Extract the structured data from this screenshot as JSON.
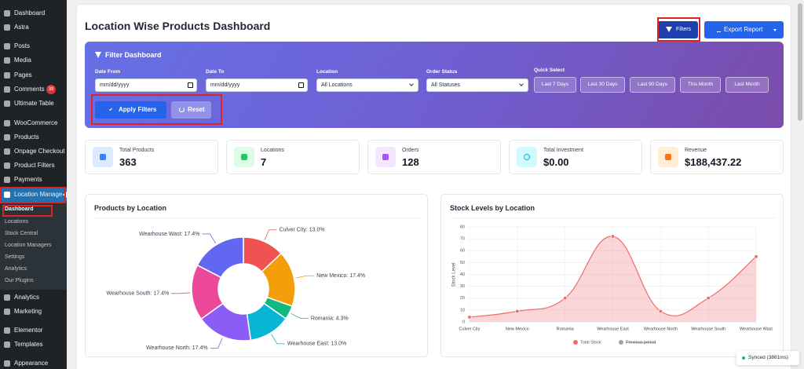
{
  "sidebar": {
    "items": [
      "Dashboard",
      "Astra",
      "Posts",
      "Media",
      "Pages",
      "Comments",
      "Ultimate Table",
      "WooCommerce",
      "Products",
      "Onpage Checkout",
      "Product Filters",
      "Payments",
      "Location Manage"
    ],
    "comments_badge": 39,
    "submenu": [
      "Dashboard",
      "Locations",
      "Stock Central",
      "Location Managers",
      "Settings",
      "Analytics",
      "Our Plugins"
    ],
    "items_after": [
      "Analytics",
      "Marketing",
      "Elementor",
      "Templates",
      "Appearance"
    ]
  },
  "header": {
    "title": "Location Wise Products Dashboard",
    "filters_button": "Filters",
    "export_button": "Export Report"
  },
  "filter": {
    "title": "Filter Dashboard",
    "fields": [
      {
        "label": "Date From",
        "value": "mm/dd/yyyy"
      },
      {
        "label": "Date To",
        "value": "mm/dd/yyyy"
      },
      {
        "label": "Location",
        "value": "All Locations"
      },
      {
        "label": "Order Status",
        "value": "All Statuses"
      }
    ],
    "quick_select": {
      "label": "Quick Select",
      "options": [
        "Last 7 Days",
        "Last 30 Days",
        "Last 90 Days",
        "This Month",
        "Last Month"
      ]
    },
    "apply": "Apply Filters",
    "reset": "Reset"
  },
  "stats": [
    {
      "label": "Total Products",
      "value": "363"
    },
    {
      "label": "Locations",
      "value": "7"
    },
    {
      "label": "Orders",
      "value": "128"
    },
    {
      "label": "Total Investment",
      "value": "$0.00"
    },
    {
      "label": "Revenue",
      "value": "$188,437.22"
    }
  ],
  "chart_data": [
    {
      "type": "pie",
      "title": "Products by Location",
      "donut": true,
      "values": [
        13.0,
        17.4,
        4.3,
        13.0,
        17.4,
        17.4,
        17.4
      ],
      "value_labels": [
        "Culver City: 13.0%",
        "New Mexico: 17.4%",
        "Romania: 4.3%",
        "Wearhouse East: 13.0%",
        "Wearhouse North: 17.4%",
        "Wearhouse South: 17.4%",
        "Wearhouse Wast: 17.4%"
      ],
      "colors": [
        "#f05252",
        "#f59e0b",
        "#10b981",
        "#06b6d4",
        "#8b5cf6",
        "#ec4899",
        "#6366f1"
      ]
    },
    {
      "type": "line",
      "title": "Stock Levels by Location",
      "y_label": "Stock Level",
      "categories": [
        "Culver City",
        "New Mexico",
        "Romania",
        "Wearhouse East",
        "Wearhouse North",
        "Wearhouse South",
        "Wearhouse Wast"
      ],
      "ylim": [
        0,
        80
      ],
      "yticks": [
        0,
        10,
        20,
        30,
        40,
        50,
        60,
        70,
        80
      ],
      "grid": true,
      "legend": "bottom",
      "series": [
        {
          "name": "Total Stock",
          "color": "#f26b6b",
          "fill": true,
          "hidden": false,
          "values": [
            4,
            9,
            20,
            72,
            9,
            20,
            55
          ]
        },
        {
          "name": "Previous period",
          "color": "#9ca3af",
          "fill": false,
          "hidden": true,
          "values": [
            null,
            null,
            null,
            null,
            null,
            null,
            null
          ]
        }
      ]
    }
  ],
  "status": "Synced (3861ms)"
}
